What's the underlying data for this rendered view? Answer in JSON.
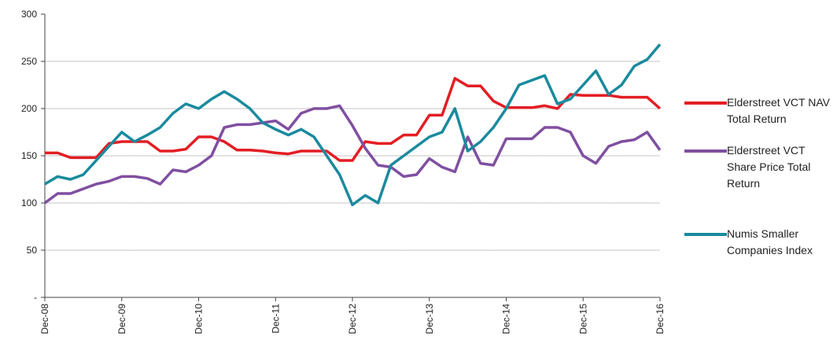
{
  "chart_data": {
    "type": "line",
    "categories": [
      "Dec-08",
      null,
      null,
      null,
      null,
      null,
      "Dec-09",
      null,
      null,
      null,
      null,
      null,
      "Dec-10",
      null,
      null,
      null,
      null,
      null,
      "Dec-11",
      null,
      null,
      null,
      null,
      null,
      "Dec-12",
      null,
      null,
      null,
      null,
      null,
      "Dec-13",
      null,
      null,
      null,
      null,
      null,
      "Dec-14",
      null,
      null,
      null,
      null,
      null,
      "Dec-15",
      null,
      null,
      null,
      null,
      null,
      "Dec-16"
    ],
    "series": [
      {
        "name": "Elderstreet VCT NAV Total Return",
        "color": "#e31e24",
        "values": [
          153,
          153,
          148,
          148,
          148,
          163,
          165,
          165,
          165,
          155,
          155,
          157,
          170,
          170,
          165,
          156,
          156,
          155,
          153,
          152,
          155,
          155,
          155,
          145,
          145,
          165,
          163,
          163,
          172,
          172,
          193,
          193,
          232,
          224,
          224,
          208,
          201,
          201,
          201,
          203,
          200,
          215,
          214,
          214,
          214,
          212,
          212,
          212,
          200
        ]
      },
      {
        "name": "Elderstreet VCT Share Price Total Return",
        "color": "#7f4fa0",
        "values": [
          100,
          110,
          110,
          115,
          120,
          123,
          128,
          128,
          126,
          120,
          135,
          133,
          140,
          150,
          180,
          183,
          183,
          185,
          187,
          178,
          195,
          200,
          200,
          203,
          182,
          158,
          140,
          138,
          128,
          130,
          147,
          138,
          133,
          170,
          142,
          140,
          168,
          168,
          168,
          180,
          180,
          175,
          150,
          142,
          160,
          165,
          167,
          175,
          156
        ]
      },
      {
        "name": "Numis Smaller Companies Index",
        "color": "#1a8a9e",
        "values": [
          120,
          128,
          125,
          130,
          145,
          160,
          175,
          165,
          172,
          180,
          195,
          205,
          200,
          210,
          218,
          210,
          200,
          185,
          178,
          172,
          178,
          170,
          150,
          130,
          98,
          108,
          100,
          140,
          150,
          160,
          170,
          175,
          200,
          155,
          165,
          180,
          200,
          225,
          230,
          235,
          205,
          210,
          225,
          240,
          215,
          225,
          245,
          252,
          268
        ]
      }
    ],
    "ylim": [
      0,
      300
    ],
    "yticks": [
      {
        "value": 0,
        "label": "-"
      },
      50,
      100,
      150,
      200,
      250,
      300
    ],
    "grid": true,
    "legend": "right"
  }
}
